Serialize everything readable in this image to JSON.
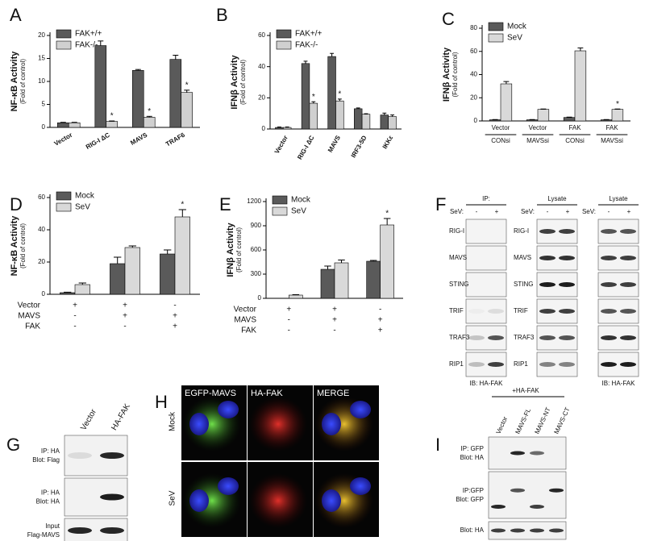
{
  "chart_data": [
    {
      "type": "bar",
      "panel": "A",
      "ylabel": "NF-κB Activity",
      "ylabel_sub": "(Fold of control)",
      "categories": [
        "Vector",
        "RIG-I ΔC",
        "MAVS",
        "TRAF6"
      ],
      "series": [
        {
          "name": "FAK+/+",
          "color": "#5a5a5a",
          "values": [
            1,
            17.8,
            12.4,
            14.8
          ],
          "errors": [
            0.1,
            1.0,
            0.2,
            0.9
          ]
        },
        {
          "name": "FAK-/-",
          "color": "#d0d0d0",
          "values": [
            1,
            1.3,
            2.2,
            7.6
          ],
          "errors": [
            0.1,
            0.1,
            0.2,
            0.5
          ],
          "significance": [
            null,
            "*",
            "*",
            "*"
          ]
        }
      ],
      "ylim": [
        0,
        20
      ],
      "yticks": [
        0,
        5,
        10,
        15,
        20
      ],
      "legend": "upper left"
    },
    {
      "type": "bar",
      "panel": "B",
      "ylabel": "IFNβ Activity",
      "ylabel_sub": "(Fold of control)",
      "categories": [
        "Vector",
        "RIG-I ΔC",
        "MAVS",
        "IRF3-5D",
        "IKKε"
      ],
      "series": [
        {
          "name": "FAK+/+",
          "color": "#5a5a5a",
          "values": [
            1,
            42,
            46.5,
            13,
            9
          ],
          "errors": [
            0.3,
            1.5,
            2,
            0.5,
            1.2
          ]
        },
        {
          "name": "FAK-/-",
          "color": "#d0d0d0",
          "values": [
            1,
            16.5,
            18,
            9.5,
            8
          ],
          "errors": [
            0.3,
            1,
            1.2,
            0.3,
            1
          ],
          "significance": [
            null,
            "*",
            "*",
            null,
            null
          ]
        }
      ],
      "ylim": [
        0,
        60
      ],
      "yticks": [
        0,
        20,
        40,
        60
      ],
      "legend": "upper left"
    },
    {
      "type": "bar",
      "panel": "C",
      "ylabel": "IFNβ Activity",
      "ylabel_sub": "(Fold of control)",
      "categories": [
        "Vector",
        "Vector",
        "FAK",
        "FAK"
      ],
      "groups": [
        "CONsi",
        "MAVSsi",
        "CONsi",
        "MAVSsi"
      ],
      "series": [
        {
          "name": "Mock",
          "color": "#5a5a5a",
          "values": [
            1,
            1,
            3,
            1
          ],
          "errors": [
            0.2,
            0.2,
            0.3,
            0.2
          ]
        },
        {
          "name": "SeV",
          "color": "#d9d9d9",
          "values": [
            32,
            10,
            60.5,
            10
          ],
          "errors": [
            2,
            0.3,
            2.5,
            0.3
          ],
          "significance": [
            null,
            null,
            null,
            "*"
          ]
        }
      ],
      "ylim": [
        0,
        80
      ],
      "yticks": [
        0,
        20,
        40,
        60,
        80
      ],
      "legend": "upper left"
    },
    {
      "type": "bar",
      "panel": "D",
      "ylabel": "NF-κB Activity",
      "ylabel_sub": "(Fold of control)",
      "categories": [
        null,
        null,
        null
      ],
      "conditions": [
        {
          "label": "Vector",
          "marks": [
            "+",
            "+",
            "-"
          ]
        },
        {
          "label": "MAVS",
          "marks": [
            "-",
            "+",
            "+"
          ]
        },
        {
          "label": "FAK",
          "marks": [
            "-",
            "-",
            "+"
          ]
        }
      ],
      "series": [
        {
          "name": "Mock",
          "color": "#5a5a5a",
          "values": [
            1,
            19,
            25
          ],
          "errors": [
            0.3,
            4,
            2.5
          ]
        },
        {
          "name": "SeV",
          "color": "#d9d9d9",
          "values": [
            6,
            29,
            48
          ],
          "errors": [
            1,
            1,
            4.5
          ],
          "significance": [
            null,
            null,
            "*"
          ]
        }
      ],
      "ylim": [
        0,
        60
      ],
      "yticks": [
        0,
        20,
        40,
        60
      ],
      "legend": "upper left"
    },
    {
      "type": "bar",
      "panel": "E",
      "ylabel": "IFNβ Activity",
      "ylabel_sub": "(Fold of control)",
      "categories": [
        null,
        null,
        null
      ],
      "conditions": [
        {
          "label": "Vector",
          "marks": [
            "+",
            "+",
            "-"
          ]
        },
        {
          "label": "MAVS",
          "marks": [
            "-",
            "+",
            "+"
          ]
        },
        {
          "label": "FAK",
          "marks": [
            "-",
            "-",
            "+"
          ]
        }
      ],
      "series": [
        {
          "name": "Mock",
          "color": "#5a5a5a",
          "values": [
            0,
            360,
            460
          ],
          "errors": [
            0,
            40,
            10
          ]
        },
        {
          "name": "SeV",
          "color": "#d9d9d9",
          "values": [
            40,
            440,
            910
          ],
          "errors": [
            5,
            35,
            80
          ],
          "significance": [
            null,
            null,
            "*"
          ]
        }
      ],
      "ylim": [
        0,
        1200
      ],
      "yticks": [
        0,
        300,
        600,
        900,
        1200
      ],
      "legend": "upper left"
    }
  ],
  "panels": {
    "F": {
      "panel": "F",
      "blocks": [
        {
          "header": "IP:",
          "treatment": "SeV:",
          "lanes": [
            "-",
            "+"
          ],
          "rows": [
            "RIG-I",
            "MAVS",
            "STING",
            "TRIF",
            "TRAF3",
            "RIP1"
          ],
          "footer": "IB: HA-FAK"
        },
        {
          "header": "Lysate",
          "treatment": "SeV:",
          "lanes": [
            "-",
            "+"
          ],
          "rows": [
            "RIG-I",
            "MAVS",
            "STING",
            "TRIF",
            "TRAF3",
            "RIP1"
          ]
        },
        {
          "header": "Lysate",
          "treatment": "SeV:",
          "lanes": [
            "-",
            "+"
          ],
          "footer": "IB: HA-FAK"
        }
      ]
    },
    "G": {
      "panel": "G",
      "lanes": [
        "Vector",
        "HA-FAK"
      ],
      "rows": [
        [
          "IP: HA",
          "Blot: Flag"
        ],
        [
          "IP: HA",
          "Blot: HA"
        ],
        [
          "Input",
          "Flag-MAVS"
        ]
      ]
    },
    "H": {
      "panel": "H",
      "columns": [
        "EGFP-MAVS",
        "HA-FAK",
        "MERGE"
      ],
      "rows": [
        "Mock",
        "SeV"
      ]
    },
    "I": {
      "panel": "I",
      "header": "+HA-FAK",
      "lanes": [
        "Vector",
        "MAVS-FL",
        "MAVS-NT",
        "MAVS-CT"
      ],
      "rows": [
        [
          "IP: GFP",
          "Blot: HA"
        ],
        [
          "IP:GFP",
          "Blot: GFP"
        ],
        [
          "Blot: HA"
        ]
      ]
    }
  }
}
